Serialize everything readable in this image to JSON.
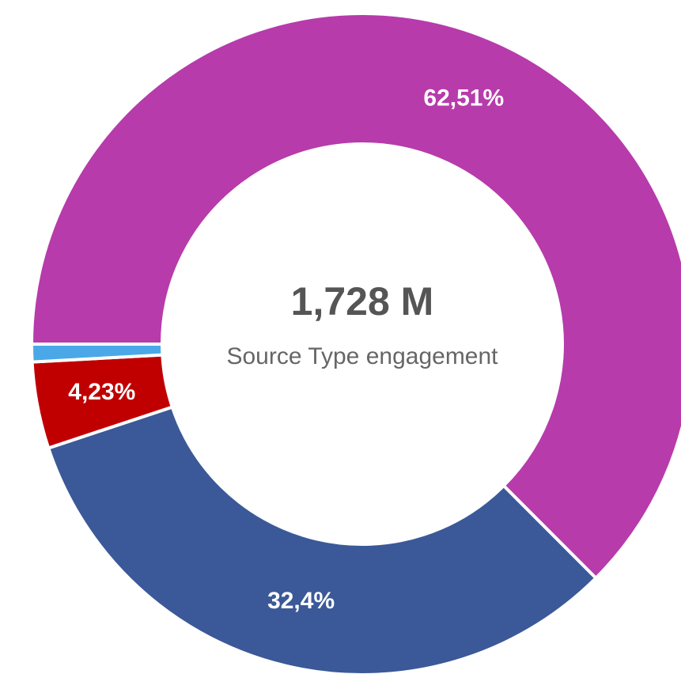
{
  "chart_data": {
    "type": "donut",
    "values": [
      62.51,
      32.4,
      4.23,
      0.86
    ],
    "value_labels": [
      "62,51%",
      "32,4%",
      "4,23%",
      null
    ],
    "colors": [
      "#b73bab",
      "#3b5998",
      "#c00000",
      "#4aa8e8"
    ],
    "center_value": "1,728 M",
    "center_label": "Source Type engagement"
  }
}
